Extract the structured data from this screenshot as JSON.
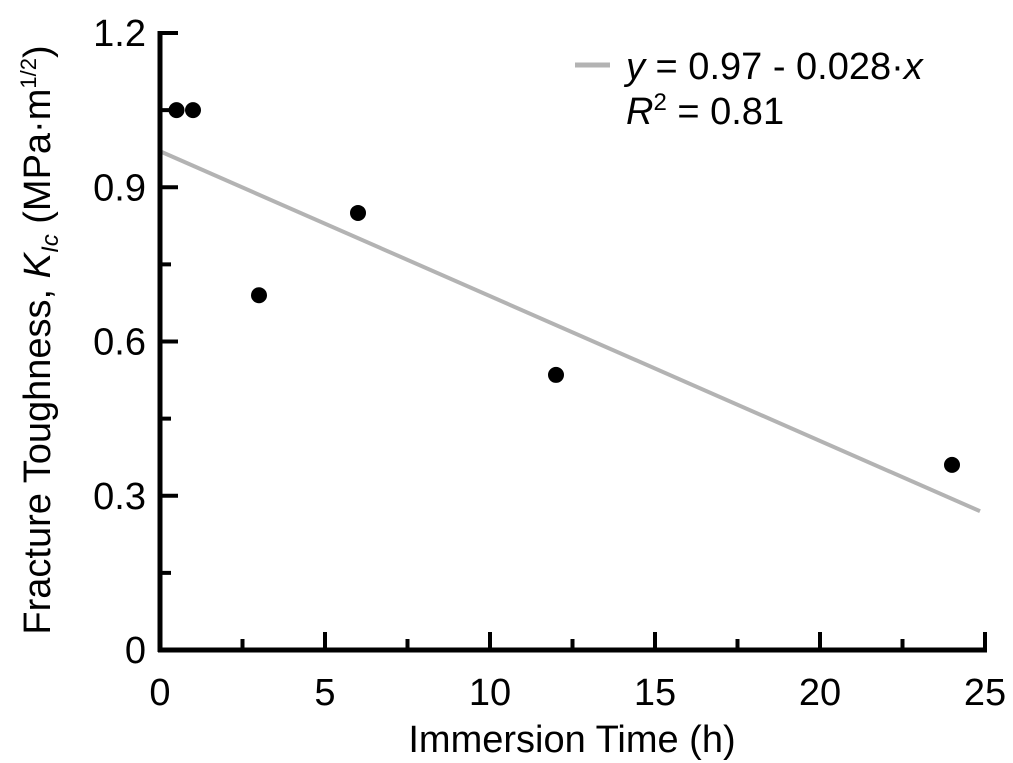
{
  "chart_data": {
    "type": "scatter",
    "title": "",
    "xlabel": "Immersion Time (h)",
    "ylabel": {
      "prefix": "Fracture Toughness, ",
      "symbol": "K",
      "subscript": "Ic",
      "unit_open": " (MPa·m",
      "unit_sup": "1/2",
      "unit_close": ")"
    },
    "xlim": [
      0,
      25
    ],
    "ylim": [
      0,
      1.2
    ],
    "x_ticks": [
      0,
      5,
      10,
      15,
      20,
      25
    ],
    "x_minor_step": 2.5,
    "y_ticks": [
      {
        "value": 0,
        "label": "0"
      },
      {
        "value": 0.3,
        "label": "0.3"
      },
      {
        "value": 0.6,
        "label": "0.6"
      },
      {
        "value": 0.9,
        "label": "0.9"
      },
      {
        "value": 1.2,
        "label": "1.2"
      }
    ],
    "y_minor_step": 0.15,
    "grid": false,
    "series": [
      {
        "x": [
          0.5,
          1,
          3,
          6,
          12,
          24
        ],
        "y": [
          1.05,
          1.05,
          0.69,
          0.85,
          0.535,
          0.36
        ],
        "color": "#000000"
      }
    ],
    "fit": {
      "intercept": 0.97,
      "slope": -0.028,
      "x_range": [
        0,
        25
      ],
      "color": "#b3b3b3"
    },
    "legend": {
      "placement": "top-right",
      "equation": {
        "y": "y",
        "eq": " = 0.97 - 0.028·",
        "x": "x"
      },
      "r2": {
        "r": "R",
        "sup": "2",
        "eq": " = 0.81"
      }
    }
  }
}
